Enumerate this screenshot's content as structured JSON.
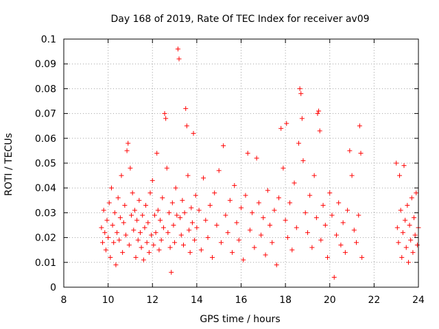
{
  "chart_data": {
    "type": "scatter",
    "title": "Day 168 of 2019, Rate Of TEC Index for receiver av09",
    "xlabel": "GPS time / hours",
    "ylabel": "ROTI / TECUs",
    "xlim": [
      8,
      24
    ],
    "ylim": [
      0,
      0.1
    ],
    "x_ticks": [
      8,
      10,
      12,
      14,
      16,
      18,
      20,
      22,
      24
    ],
    "x_tick_labels": [
      "8",
      "10",
      "12",
      "14",
      "16",
      "18",
      "20",
      "22",
      "24"
    ],
    "y_ticks": [
      0,
      0.01,
      0.02,
      0.03,
      0.04,
      0.05,
      0.06,
      0.07,
      0.08,
      0.09,
      0.1
    ],
    "y_tick_labels": [
      "0",
      "0.01",
      "0.02",
      "0.03",
      "0.04",
      "0.05",
      "0.06",
      "0.07",
      "0.08",
      "0.09",
      "0.1"
    ],
    "grid": true,
    "marker": "+",
    "marker_color": "#ff0000",
    "series": [
      {
        "points": [
          [
            9.7,
            0.024
          ],
          [
            9.75,
            0.018
          ],
          [
            9.8,
            0.031
          ],
          [
            9.85,
            0.022
          ],
          [
            9.9,
            0.015
          ],
          [
            9.95,
            0.027
          ],
          [
            10.0,
            0.02
          ],
          [
            10.05,
            0.034
          ],
          [
            10.1,
            0.012
          ],
          [
            10.15,
            0.04
          ],
          [
            10.2,
            0.025
          ],
          [
            10.25,
            0.018
          ],
          [
            10.3,
            0.03
          ],
          [
            10.35,
            0.009
          ],
          [
            10.4,
            0.022
          ],
          [
            10.45,
            0.036
          ],
          [
            10.5,
            0.019
          ],
          [
            10.55,
            0.028
          ],
          [
            10.6,
            0.045
          ],
          [
            10.65,
            0.014
          ],
          [
            10.7,
            0.026
          ],
          [
            10.75,
            0.033
          ],
          [
            10.8,
            0.021
          ],
          [
            10.85,
            0.055
          ],
          [
            10.9,
            0.058
          ],
          [
            10.95,
            0.017
          ],
          [
            11.0,
            0.048
          ],
          [
            11.05,
            0.029
          ],
          [
            11.1,
            0.038
          ],
          [
            11.15,
            0.023
          ],
          [
            11.2,
            0.031
          ],
          [
            11.25,
            0.012
          ],
          [
            11.3,
            0.027
          ],
          [
            11.35,
            0.019
          ],
          [
            11.4,
            0.035
          ],
          [
            11.45,
            0.022
          ],
          [
            11.5,
            0.016
          ],
          [
            11.55,
            0.029
          ],
          [
            11.6,
            0.011
          ],
          [
            11.65,
            0.024
          ],
          [
            11.7,
            0.033
          ],
          [
            11.75,
            0.018
          ],
          [
            11.8,
            0.026
          ],
          [
            11.85,
            0.014
          ],
          [
            11.9,
            0.038
          ],
          [
            11.95,
            0.021
          ],
          [
            12.0,
            0.043
          ],
          [
            12.05,
            0.017
          ],
          [
            12.1,
            0.029
          ],
          [
            12.15,
            0.022
          ],
          [
            12.2,
            0.054
          ],
          [
            12.25,
            0.031
          ],
          [
            12.3,
            0.015
          ],
          [
            12.35,
            0.027
          ],
          [
            12.4,
            0.019
          ],
          [
            12.45,
            0.036
          ],
          [
            12.5,
            0.024
          ],
          [
            12.55,
            0.07
          ],
          [
            12.6,
            0.068
          ],
          [
            12.65,
            0.048
          ],
          [
            12.7,
            0.022
          ],
          [
            12.75,
            0.03
          ],
          [
            12.8,
            0.016
          ],
          [
            12.85,
            0.006
          ],
          [
            12.9,
            0.034
          ],
          [
            12.95,
            0.025
          ],
          [
            13.0,
            0.018
          ],
          [
            13.05,
            0.04
          ],
          [
            13.1,
            0.029
          ],
          [
            13.15,
            0.096
          ],
          [
            13.2,
            0.092
          ],
          [
            13.25,
            0.028
          ],
          [
            13.3,
            0.021
          ],
          [
            13.35,
            0.035
          ],
          [
            13.4,
            0.017
          ],
          [
            13.45,
            0.03
          ],
          [
            13.5,
            0.072
          ],
          [
            13.55,
            0.065
          ],
          [
            13.6,
            0.045
          ],
          [
            13.65,
            0.023
          ],
          [
            13.7,
            0.014
          ],
          [
            13.75,
            0.032
          ],
          [
            13.8,
            0.026
          ],
          [
            13.85,
            0.062
          ],
          [
            13.9,
            0.019
          ],
          [
            13.95,
            0.037
          ],
          [
            14.0,
            0.024
          ],
          [
            14.1,
            0.031
          ],
          [
            14.2,
            0.015
          ],
          [
            14.3,
            0.044
          ],
          [
            14.4,
            0.027
          ],
          [
            14.5,
            0.02
          ],
          [
            14.6,
            0.033
          ],
          [
            14.7,
            0.012
          ],
          [
            14.8,
            0.038
          ],
          [
            14.9,
            0.025
          ],
          [
            15.0,
            0.047
          ],
          [
            15.1,
            0.018
          ],
          [
            15.2,
            0.057
          ],
          [
            15.3,
            0.029
          ],
          [
            15.4,
            0.022
          ],
          [
            15.5,
            0.035
          ],
          [
            15.6,
            0.014
          ],
          [
            15.7,
            0.041
          ],
          [
            15.8,
            0.026
          ],
          [
            15.9,
            0.019
          ],
          [
            16.0,
            0.032
          ],
          [
            16.1,
            0.011
          ],
          [
            16.2,
            0.037
          ],
          [
            16.3,
            0.054
          ],
          [
            16.4,
            0.023
          ],
          [
            16.5,
            0.03
          ],
          [
            16.6,
            0.016
          ],
          [
            16.7,
            0.052
          ],
          [
            16.8,
            0.034
          ],
          [
            16.9,
            0.021
          ],
          [
            17.0,
            0.028
          ],
          [
            17.1,
            0.013
          ],
          [
            17.2,
            0.039
          ],
          [
            17.3,
            0.025
          ],
          [
            17.4,
            0.018
          ],
          [
            17.5,
            0.031
          ],
          [
            17.6,
            0.009
          ],
          [
            17.7,
            0.036
          ],
          [
            17.8,
            0.064
          ],
          [
            17.9,
            0.048
          ],
          [
            18.0,
            0.027
          ],
          [
            18.05,
            0.066
          ],
          [
            18.1,
            0.02
          ],
          [
            18.2,
            0.034
          ],
          [
            18.3,
            0.015
          ],
          [
            18.4,
            0.042
          ],
          [
            18.5,
            0.024
          ],
          [
            18.6,
            0.058
          ],
          [
            18.65,
            0.08
          ],
          [
            18.7,
            0.078
          ],
          [
            18.75,
            0.068
          ],
          [
            18.8,
            0.051
          ],
          [
            18.9,
            0.03
          ],
          [
            19.0,
            0.022
          ],
          [
            19.1,
            0.037
          ],
          [
            19.2,
            0.016
          ],
          [
            19.3,
            0.045
          ],
          [
            19.4,
            0.028
          ],
          [
            19.45,
            0.07
          ],
          [
            19.5,
            0.071
          ],
          [
            19.55,
            0.063
          ],
          [
            19.6,
            0.019
          ],
          [
            19.7,
            0.033
          ],
          [
            19.8,
            0.025
          ],
          [
            19.9,
            0.012
          ],
          [
            20.0,
            0.038
          ],
          [
            20.1,
            0.029
          ],
          [
            20.2,
            0.004
          ],
          [
            20.3,
            0.021
          ],
          [
            20.4,
            0.034
          ],
          [
            20.5,
            0.017
          ],
          [
            20.6,
            0.026
          ],
          [
            20.7,
            0.014
          ],
          [
            20.8,
            0.031
          ],
          [
            20.9,
            0.055
          ],
          [
            21.0,
            0.045
          ],
          [
            21.1,
            0.023
          ],
          [
            21.2,
            0.018
          ],
          [
            21.3,
            0.029
          ],
          [
            21.35,
            0.065
          ],
          [
            21.4,
            0.054
          ],
          [
            21.45,
            0.012
          ],
          [
            23.0,
            0.05
          ],
          [
            23.05,
            0.024
          ],
          [
            23.1,
            0.018
          ],
          [
            23.15,
            0.045
          ],
          [
            23.2,
            0.031
          ],
          [
            23.25,
            0.012
          ],
          [
            23.3,
            0.022
          ],
          [
            23.35,
            0.049
          ],
          [
            23.4,
            0.027
          ],
          [
            23.45,
            0.016
          ],
          [
            23.5,
            0.033
          ],
          [
            23.55,
            0.01
          ],
          [
            23.6,
            0.025
          ],
          [
            23.65,
            0.019
          ],
          [
            23.7,
            0.036
          ],
          [
            23.75,
            0.014
          ],
          [
            23.8,
            0.028
          ],
          [
            23.85,
            0.021
          ],
          [
            23.9,
            0.038
          ],
          [
            23.95,
            0.017
          ],
          [
            24.0,
            0.024
          ]
        ]
      }
    ]
  }
}
